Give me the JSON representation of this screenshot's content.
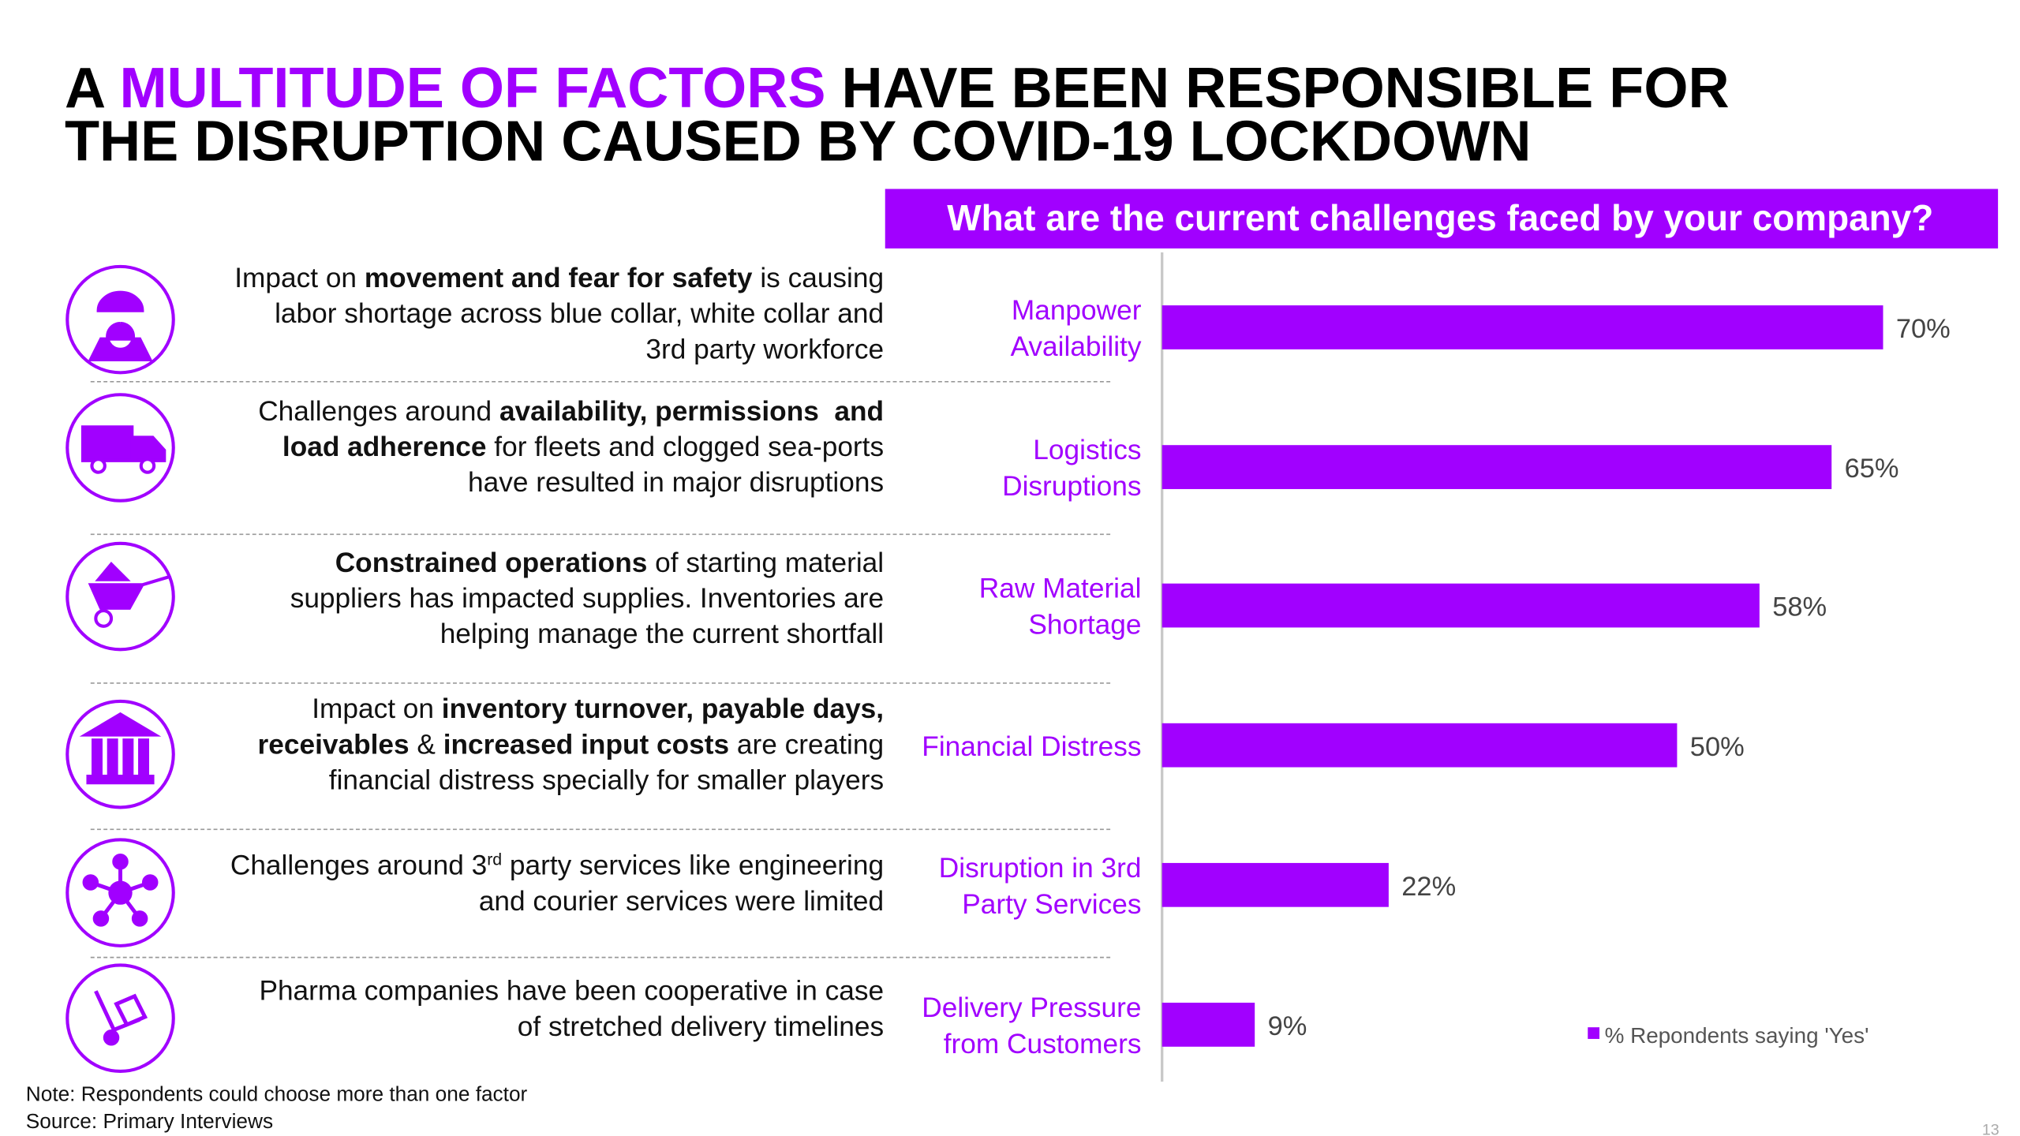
{
  "title": {
    "lines": [
      [
        {
          "text": "A "
        },
        {
          "text": "MULTITUDE OF FACTORS",
          "highlight": true
        },
        {
          "text": " HAVE BEEN RESPONSIBLE FOR"
        }
      ],
      [
        {
          "text": "THE DISRUPTION CAUSED BY COVID-19 LOCKDOWN"
        }
      ]
    ],
    "highlight_color": "#a100ff"
  },
  "rows": [
    {
      "lines": [
        [
          {
            "text": "Impact on "
          },
          {
            "text": "movement and fear for safety",
            "bold": true
          },
          {
            "text": " is causing"
          }
        ],
        [
          {
            "text": "labor shortage across blue collar, white collar and"
          }
        ],
        [
          {
            "text": "3rd party workforce"
          }
        ]
      ]
    },
    {
      "lines": [
        [
          {
            "text": "Challenges around "
          },
          {
            "text": "availability, permissions  and",
            "bold": true
          }
        ],
        [
          {
            "text": "load adherence",
            "bold": true
          },
          {
            "text": " for fleets and clogged sea-ports"
          }
        ],
        [
          {
            "text": "have resulted in major disruptions"
          }
        ]
      ]
    },
    {
      "lines": [
        [
          {
            "text": "Constrained operations",
            "bold": true
          },
          {
            "text": " of starting material"
          }
        ],
        [
          {
            "text": "suppliers has impacted supplies. Inventories are"
          }
        ],
        [
          {
            "text": "helping manage the current shortfall"
          }
        ]
      ]
    },
    {
      "lines": [
        [
          {
            "text": "Impact on "
          },
          {
            "text": "inventory turnover, payable days,",
            "bold": true
          }
        ],
        [
          {
            "text": "receivables",
            "bold": true
          },
          {
            "text": " & "
          },
          {
            "text": "increased input costs",
            "bold": true
          },
          {
            "text": " are creating"
          }
        ],
        [
          {
            "text": "financial distress specially for smaller players"
          }
        ]
      ]
    },
    {
      "lines": [
        [
          {
            "text": "Challenges around 3"
          },
          {
            "text": "rd",
            "sup": true
          },
          {
            "text": " party services like engineering"
          }
        ],
        [
          {
            "text": "and courier services were limited"
          }
        ]
      ]
    },
    {
      "lines": [
        [
          {
            "text": "Pharma companies have been cooperative in case"
          }
        ],
        [
          {
            "text": "of stretched delivery timelines"
          }
        ]
      ]
    }
  ],
  "chart_data": {
    "type": "hbar",
    "subtitle": "What are the current challenges faced by your company?",
    "categories": [
      "Manpower\nAvailability",
      "Logistics\nDisruptions",
      "Raw Material\nShortage",
      "Financial Distress",
      "Disruption in 3rd\nParty Services",
      "Delivery Pressure\nfrom Customers"
    ],
    "series": [
      {
        "name": "% Repondents saying 'Yes'",
        "color": "#a100ff",
        "values": [
          70,
          65,
          58,
          50,
          22,
          9
        ],
        "value_labels": [
          "70%",
          "65%",
          "58%",
          "50%",
          "22%",
          "9%"
        ]
      }
    ],
    "xlim": [
      0,
      100
    ],
    "legend": "bottom-right"
  },
  "notes": [
    "Note: Respondents could choose more than one factor",
    "Source: Primary Interviews"
  ],
  "page_number": "13"
}
